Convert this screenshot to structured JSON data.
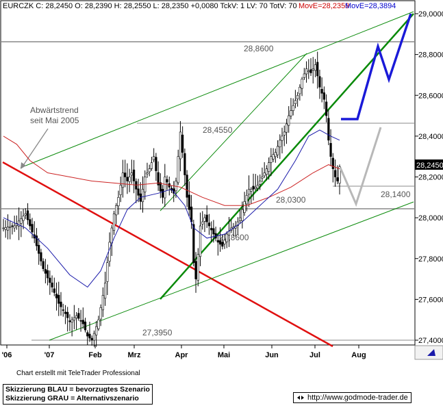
{
  "header": {
    "quote": "EURCZK C: 28,2450 O: 28,2390 H: 28,2550 L: 28,2350 +0,0080 TckV: 1 LV: 70 TotV: 70",
    "mov1_label": "MovE=28,2359",
    "mov2_label": "MovE=28,3894",
    "mov1_color": "#cc0000",
    "mov2_color": "#0000cc"
  },
  "annotation": {
    "line1": "Abwärtstrend",
    "line2": "seit Mai 2005"
  },
  "credit": "Chart erstellt mit TeleTrader Professional",
  "legend": {
    "blue": "Skizzierung BLAU = bevorzugtes Szenario",
    "gray": "Skizzierung GRAU = Alternativszenario"
  },
  "url": "http://www.godmode-trader.de",
  "chart_data": {
    "type": "candlestick",
    "symbol": "EURCZK",
    "ylim": [
      27.35,
      29.03
    ],
    "yticks": [
      "29,0000",
      "28,8000",
      "28,6000",
      "28,4000",
      "28,2000",
      "28,0000",
      "27,8000",
      "27,6000",
      "27,4000"
    ],
    "xticks": [
      "'06",
      "'07",
      "Feb",
      "Mrz",
      "Apr",
      "Mai",
      "Jun",
      "Jul",
      "Aug"
    ],
    "last_price_label": "28,2450",
    "levels": [
      {
        "label": "28,8600",
        "value": 28.86
      },
      {
        "label": "28,4550",
        "value": 28.455
      },
      {
        "label": "28,1400",
        "value": 28.14
      },
      {
        "label": "28,0300",
        "value": 28.03
      },
      {
        "label": "27,8600",
        "value": 27.86
      },
      {
        "label": "27,3950",
        "value": 27.395
      }
    ],
    "colors": {
      "red_trend": "#e01010",
      "green_trend": "#0a8a0a",
      "ma_red": "#cc2222",
      "ma_blue": "#1a1aaa",
      "scenario_blue": "#1a1ad8",
      "scenario_gray": "#b8b8b8"
    },
    "price_path": [
      [
        0,
        27.95
      ],
      [
        5,
        27.96
      ],
      [
        10,
        28.02
      ],
      [
        14,
        27.9
      ],
      [
        18,
        27.75
      ],
      [
        22,
        27.66
      ],
      [
        25,
        27.58
      ],
      [
        28,
        27.53
      ],
      [
        30,
        27.49
      ],
      [
        33,
        27.52
      ],
      [
        36,
        27.48
      ],
      [
        38,
        27.42
      ],
      [
        40,
        27.4
      ],
      [
        43,
        27.5
      ],
      [
        46,
        27.68
      ],
      [
        48,
        27.88
      ],
      [
        50,
        28.02
      ],
      [
        52,
        28.1
      ],
      [
        54,
        28.22
      ],
      [
        56,
        28.18
      ],
      [
        58,
        28.22
      ],
      [
        60,
        28.14
      ],
      [
        62,
        28.08
      ],
      [
        64,
        28.2
      ],
      [
        66,
        28.24
      ],
      [
        68,
        28.3
      ],
      [
        70,
        28.16
      ],
      [
        72,
        28.1
      ],
      [
        73,
        28.2
      ],
      [
        75,
        28.15
      ],
      [
        77,
        28.12
      ],
      [
        78,
        28.18
      ],
      [
        80,
        28.42
      ],
      [
        81,
        28.32
      ],
      [
        83,
        28.1
      ],
      [
        85,
        27.98
      ],
      [
        86,
        27.78
      ],
      [
        87,
        27.7
      ],
      [
        88,
        27.82
      ],
      [
        89,
        27.96
      ],
      [
        91,
        28.0
      ],
      [
        93,
        27.96
      ],
      [
        95,
        27.92
      ],
      [
        97,
        27.88
      ],
      [
        99,
        27.86
      ],
      [
        101,
        27.92
      ],
      [
        103,
        27.95
      ],
      [
        105,
        27.96
      ],
      [
        107,
        28.0
      ],
      [
        109,
        28.08
      ],
      [
        111,
        28.14
      ],
      [
        113,
        28.14
      ],
      [
        115,
        28.16
      ],
      [
        117,
        28.2
      ],
      [
        119,
        28.24
      ],
      [
        121,
        28.3
      ],
      [
        123,
        28.32
      ],
      [
        125,
        28.38
      ],
      [
        127,
        28.42
      ],
      [
        129,
        28.5
      ],
      [
        131,
        28.55
      ],
      [
        133,
        28.6
      ],
      [
        135,
        28.68
      ],
      [
        137,
        28.73
      ],
      [
        139,
        28.71
      ],
      [
        141,
        28.75
      ],
      [
        143,
        28.64
      ],
      [
        145,
        28.58
      ],
      [
        146,
        28.5
      ],
      [
        147,
        28.38
      ],
      [
        148,
        28.3
      ],
      [
        149,
        28.24
      ],
      [
        150,
        28.2
      ],
      [
        151,
        28.18
      ],
      [
        152,
        28.25
      ]
    ],
    "ma_red": [
      [
        0,
        28.4
      ],
      [
        6,
        28.36
      ],
      [
        12,
        28.28
      ],
      [
        20,
        28.22
      ],
      [
        30,
        28.2
      ],
      [
        40,
        28.18
      ],
      [
        50,
        28.17
      ],
      [
        60,
        28.16
      ],
      [
        70,
        28.17
      ],
      [
        80,
        28.15
      ],
      [
        90,
        28.1
      ],
      [
        100,
        28.06
      ],
      [
        110,
        28.06
      ],
      [
        120,
        28.1
      ],
      [
        130,
        28.15
      ],
      [
        140,
        28.22
      ],
      [
        147,
        28.26
      ],
      [
        152,
        28.24
      ]
    ],
    "ma_blue": [
      [
        0,
        28.0
      ],
      [
        10,
        27.95
      ],
      [
        20,
        27.85
      ],
      [
        30,
        27.72
      ],
      [
        38,
        27.66
      ],
      [
        44,
        27.74
      ],
      [
        50,
        27.9
      ],
      [
        56,
        28.04
      ],
      [
        62,
        28.1
      ],
      [
        70,
        28.12
      ],
      [
        76,
        28.14
      ],
      [
        82,
        28.06
      ],
      [
        86,
        27.95
      ],
      [
        92,
        27.9
      ],
      [
        100,
        27.92
      ],
      [
        108,
        27.98
      ],
      [
        116,
        28.06
      ],
      [
        124,
        28.14
      ],
      [
        132,
        28.28
      ],
      [
        138,
        28.4
      ],
      [
        143,
        28.43
      ],
      [
        148,
        28.4
      ],
      [
        152,
        28.38
      ]
    ]
  }
}
